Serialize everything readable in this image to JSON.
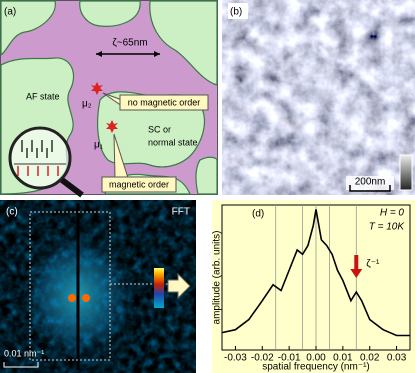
{
  "panel_a": {
    "label": "(a)",
    "length": "ζ~65nm",
    "af_state": "AF state",
    "mu2": "μ₂",
    "mu1": "μ₁",
    "no_order": "no magnetic order",
    "sc_lines": [
      "SC or",
      "normal state"
    ],
    "order": "magnetic order"
  },
  "panel_b": {
    "label": "(b)",
    "scale": "200nm"
  },
  "panel_c": {
    "label": "(c)",
    "fft": "FFT",
    "scale": "0.01 nm⁻¹"
  },
  "chart_data": {
    "type": "line",
    "label": "(d)",
    "annotations": [
      "H = 0",
      "T = 10K"
    ],
    "arrow_label": "ζ⁻¹",
    "arrow_x": 0.015,
    "xlabel": "spatial frequency (nm⁻¹)",
    "ylabel": "amplitude (arb. units)",
    "x": [
      -0.035,
      -0.03,
      -0.025,
      -0.02,
      -0.016,
      -0.013,
      -0.01,
      -0.007,
      -0.005,
      -0.003,
      -0.001,
      0,
      0.002,
      0.004,
      0.006,
      0.008,
      0.01,
      0.013,
      0.015,
      0.017,
      0.02,
      0.025,
      0.03,
      0.035
    ],
    "series": [
      {
        "color": "#000000",
        "values": [
          0.12,
          0.14,
          0.21,
          0.34,
          0.45,
          0.41,
          0.55,
          0.69,
          0.66,
          0.72,
          0.86,
          0.97,
          0.76,
          0.72,
          0.66,
          0.55,
          0.48,
          0.34,
          0.4,
          0.34,
          0.21,
          0.14,
          0.1,
          0.1
        ]
      }
    ],
    "reference_lines": [
      -0.015,
      -0.005,
      0,
      0.005,
      0.015
    ],
    "xlim": [
      -0.035,
      0.035
    ],
    "ylim": [
      0,
      1
    ],
    "xticks": [
      -0.03,
      -0.02,
      -0.01,
      {
        "value": 0,
        "label": "0.00"
      },
      0.01,
      0.02,
      0.03
    ]
  }
}
